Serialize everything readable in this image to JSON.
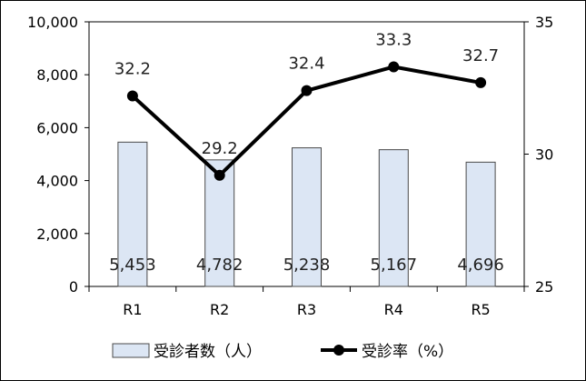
{
  "chart_data": {
    "type": "bar",
    "categories": [
      "R1",
      "R2",
      "R3",
      "R4",
      "R5"
    ],
    "series": [
      {
        "name": "受診者数（人）",
        "type": "bar",
        "axis": "left",
        "values": [
          5453,
          4782,
          5238,
          5167,
          4696
        ],
        "labels": [
          "5,453",
          "4,782",
          "5,238",
          "5,167",
          "4,696"
        ],
        "color": "#dce6f4"
      },
      {
        "name": "受診率（%）",
        "type": "line",
        "axis": "right",
        "values": [
          32.2,
          29.2,
          32.4,
          33.3,
          32.7
        ],
        "labels": [
          "32.2",
          "29.2",
          "32.4",
          "33.3",
          "32.7"
        ],
        "color": "#000000"
      }
    ],
    "y_left": {
      "range": [
        0,
        10000
      ],
      "ticks": [
        0,
        2000,
        4000,
        6000,
        8000,
        10000
      ],
      "tick_labels": [
        "0",
        "2,000",
        "4,000",
        "6,000",
        "8,000",
        "10,000"
      ]
    },
    "y_right": {
      "range": [
        25,
        35
      ],
      "ticks": [
        25,
        30,
        35
      ],
      "tick_labels": [
        "25",
        "30",
        "35"
      ]
    },
    "grid": false,
    "legend": "bottom"
  }
}
